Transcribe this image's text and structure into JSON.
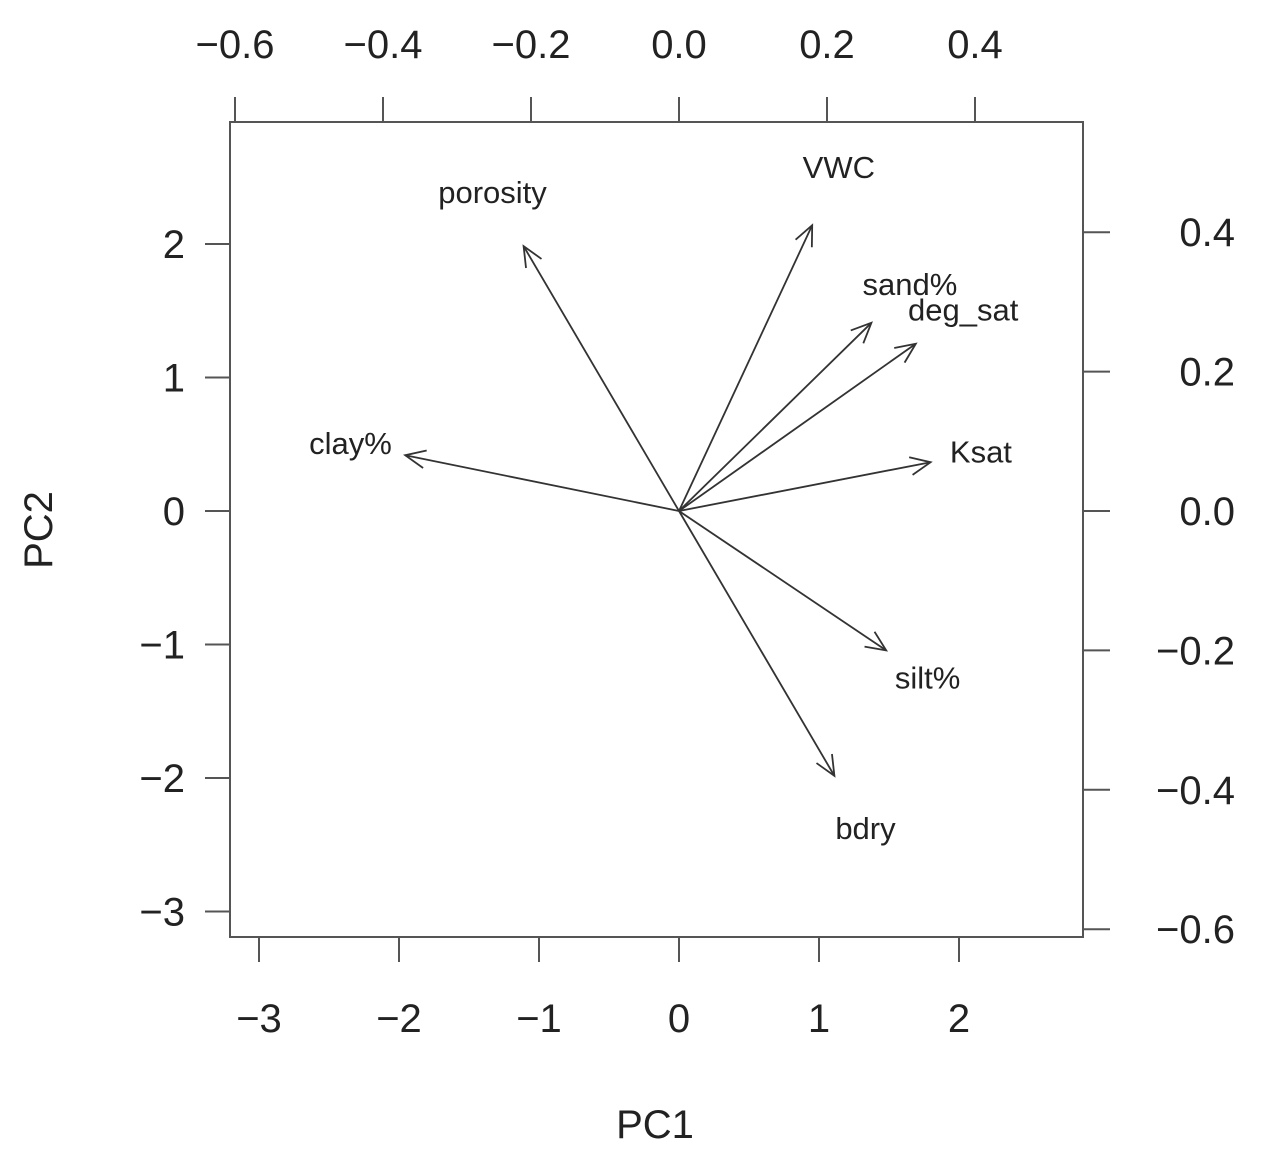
{
  "chart_data": {
    "type": "biplot",
    "xlabel": "PC1",
    "ylabel": "PC2",
    "bottom_axis": {
      "ticks": [
        -3,
        -2,
        -1,
        0,
        1,
        2
      ],
      "tick_labels": [
        "−3",
        "−2",
        "−1",
        "0",
        "1",
        "2"
      ],
      "lim": [
        -3.2,
        2.9
      ]
    },
    "left_axis": {
      "ticks": [
        2,
        1,
        0,
        -1,
        -2,
        -3
      ],
      "tick_labels": [
        "2",
        "1",
        "0",
        "−1",
        "−2",
        "−3"
      ],
      "lim": [
        -3.2,
        2.9
      ]
    },
    "top_axis": {
      "ticks": [
        -0.6,
        -0.4,
        -0.2,
        0.0,
        0.2,
        0.4
      ],
      "tick_labels": [
        "−0.6",
        "−0.4",
        "−0.2",
        "0.0",
        "0.2",
        "0.4"
      ],
      "lim": [
        -0.62,
        0.56
      ]
    },
    "right_axis": {
      "ticks": [
        0.4,
        0.2,
        0.0,
        -0.2,
        -0.4,
        -0.6
      ],
      "tick_labels": [
        "0.4",
        "0.2",
        "0.0",
        "−0.2",
        "−0.4",
        "−0.6"
      ],
      "lim": [
        -0.62,
        0.56
      ]
    },
    "loadings": [
      {
        "name": "porosity",
        "pc1": -0.21,
        "pc2": 0.38
      },
      {
        "name": "VWC",
        "pc1": 0.18,
        "pc2": 0.41
      },
      {
        "name": "sand%",
        "pc1": 0.26,
        "pc2": 0.27
      },
      {
        "name": "deg_sat",
        "pc1": 0.32,
        "pc2": 0.24
      },
      {
        "name": "Ksat",
        "pc1": 0.34,
        "pc2": 0.07
      },
      {
        "name": "clay%",
        "pc1": -0.37,
        "pc2": 0.08
      },
      {
        "name": "silt%",
        "pc1": 0.28,
        "pc2": -0.2
      },
      {
        "name": "bdry",
        "pc1": 0.21,
        "pc2": -0.38
      }
    ],
    "grid": false,
    "legend": "none"
  }
}
